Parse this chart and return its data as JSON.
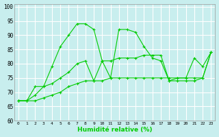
{
  "title": "",
  "xlabel": "Humidité relative (%)",
  "ylabel": "",
  "background_color": "#c8eeee",
  "grid_color": "#ffffff",
  "line_color": "#00cc00",
  "xlim": [
    -0.5,
    23.5
  ],
  "ylim": [
    60,
    101
  ],
  "yticks": [
    60,
    65,
    70,
    75,
    80,
    85,
    90,
    95,
    100
  ],
  "xtick_labels": [
    "0",
    "1",
    "2",
    "3",
    "4",
    "5",
    "6",
    "7",
    "8",
    "9",
    "10",
    "11",
    "12",
    "13",
    "14",
    "15",
    "16",
    "17",
    "18",
    "19",
    "20",
    "21",
    "22",
    "23"
  ],
  "series1": [
    67,
    67,
    72,
    72,
    79,
    86,
    90,
    94,
    94,
    92,
    81,
    75,
    92,
    92,
    91,
    86,
    82,
    81,
    74,
    75,
    75,
    82,
    79,
    84
  ],
  "series2": [
    67,
    67,
    69,
    72,
    73,
    75,
    77,
    80,
    81,
    74,
    81,
    81,
    82,
    82,
    82,
    83,
    83,
    83,
    74,
    74,
    74,
    74,
    75,
    84
  ],
  "series3": [
    67,
    67,
    67,
    68,
    69,
    70,
    72,
    73,
    74,
    74,
    74,
    75,
    75,
    75,
    75,
    75,
    75,
    75,
    75,
    75,
    75,
    75,
    75,
    84
  ]
}
